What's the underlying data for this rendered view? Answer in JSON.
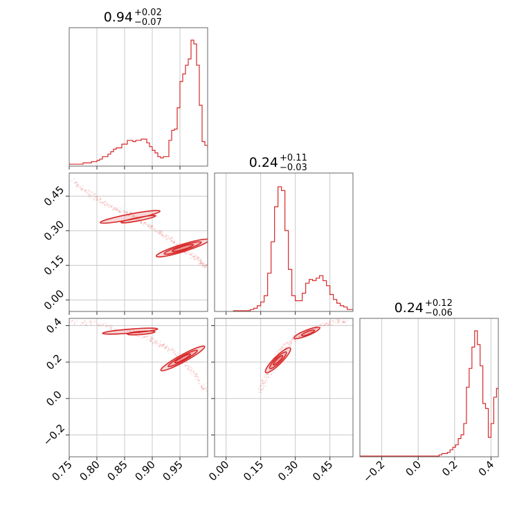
{
  "chart_data": {
    "type": "corner",
    "color": "#d62728",
    "grid": true,
    "panels": [
      {
        "id": "hist-0",
        "type": "histogram",
        "title": {
          "value": "0.94",
          "plus": "+0.02",
          "minus": "−0.07"
        },
        "xlim": [
          0.75,
          1.0
        ],
        "x_edges_start": 0.75,
        "bin_width": 0.005,
        "heights": [
          0.01,
          0.01,
          0.01,
          0.01,
          0.01,
          0.02,
          0.02,
          0.02,
          0.03,
          0.03,
          0.04,
          0.05,
          0.07,
          0.07,
          0.09,
          0.11,
          0.13,
          0.14,
          0.14,
          0.17,
          0.17,
          0.2,
          0.2,
          0.19,
          0.2,
          0.2,
          0.21,
          0.21,
          0.18,
          0.15,
          0.12,
          0.1,
          0.07,
          0.06,
          0.07,
          0.07,
          0.2,
          0.28,
          0.29,
          0.46,
          0.67,
          0.73,
          0.8,
          0.85,
          1.0,
          0.97,
          0.8,
          0.48,
          0.19,
          0.16,
          0.13,
          0.11,
          0.06,
          0.03,
          0.01
        ]
      },
      {
        "id": "hist-1",
        "type": "histogram",
        "title": {
          "value": "0.24",
          "plus": "+0.11",
          "minus": "−0.03"
        },
        "xlim": [
          -0.05,
          0.55
        ],
        "x_edges_start": 0.03,
        "bin_width": 0.015,
        "heights": [
          0.0,
          0.0,
          0.0,
          0.0,
          0.0,
          0.01,
          0.02,
          0.04,
          0.07,
          0.12,
          0.3,
          0.55,
          0.83,
          0.99,
          0.96,
          0.64,
          0.33,
          0.12,
          0.08,
          0.08,
          0.14,
          0.22,
          0.25,
          0.24,
          0.26,
          0.28,
          0.24,
          0.2,
          0.13,
          0.09,
          0.06,
          0.04,
          0.03,
          0.01,
          0.01
        ]
      },
      {
        "id": "hist-2",
        "type": "histogram",
        "title": {
          "value": "0.24",
          "plus": "+0.12",
          "minus": "−0.06"
        },
        "xlim": [
          -0.32,
          0.44
        ],
        "x_edges_start": -0.32,
        "bin_width": 0.015,
        "heights": [
          0.0,
          0.0,
          0.0,
          0.0,
          0.0,
          0.0,
          0.0,
          0.0,
          0.0,
          0.0,
          0.0,
          0.0,
          0.0,
          0.0,
          0.0,
          0.0,
          0.0,
          0.0,
          0.0,
          0.0,
          0.0,
          0.0,
          0.0,
          0.0,
          0.0,
          0.0,
          0.0,
          0.0,
          0.0,
          0.01,
          0.02,
          0.02,
          0.03,
          0.05,
          0.07,
          0.09,
          0.14,
          0.17,
          0.26,
          0.55,
          0.7,
          0.87,
          1.0,
          0.89,
          0.72,
          0.42,
          0.38,
          0.15,
          0.26,
          0.47,
          0.54,
          0.47,
          0.27,
          0.12,
          0.03
        ]
      },
      {
        "id": "scatter-1-0",
        "type": "density2d",
        "x_param": 0,
        "y_param": 1,
        "xlim": [
          0.75,
          1.0
        ],
        "ylim": [
          -0.05,
          0.55
        ],
        "ridge": [
          [
            0.755,
            0.52
          ],
          [
            0.78,
            0.47
          ],
          [
            0.8,
            0.44
          ],
          [
            0.82,
            0.41
          ],
          [
            0.84,
            0.39
          ],
          [
            0.86,
            0.37
          ],
          [
            0.88,
            0.34
          ],
          [
            0.9,
            0.31
          ],
          [
            0.92,
            0.28
          ],
          [
            0.94,
            0.25
          ],
          [
            0.96,
            0.21
          ],
          [
            0.98,
            0.18
          ],
          [
            0.99,
            0.16
          ],
          [
            1.0,
            0.14
          ]
        ],
        "contours": [
          {
            "center": [
              0.86,
              0.36
            ],
            "rx": 0.055,
            "ry": 0.012,
            "rot": -0.19
          },
          {
            "center": [
              0.875,
              0.35
            ],
            "rx": 0.032,
            "ry": 0.007,
            "rot": -0.19
          },
          {
            "center": [
              0.955,
              0.225
            ],
            "rx": 0.05,
            "ry": 0.016,
            "rot": -0.3
          },
          {
            "center": [
              0.955,
              0.225
            ],
            "rx": 0.035,
            "ry": 0.011,
            "rot": -0.3
          },
          {
            "center": [
              0.955,
              0.225
            ],
            "rx": 0.02,
            "ry": 0.006,
            "rot": -0.3
          }
        ]
      },
      {
        "id": "scatter-2-0",
        "type": "density2d",
        "x_param": 0,
        "y_param": 2,
        "xlim": [
          0.75,
          1.0
        ],
        "ylim": [
          -0.32,
          0.44
        ],
        "ridge": [
          [
            0.755,
            0.42
          ],
          [
            0.8,
            0.41
          ],
          [
            0.84,
            0.38
          ],
          [
            0.88,
            0.35
          ],
          [
            0.9,
            0.32
          ],
          [
            0.92,
            0.29
          ],
          [
            0.94,
            0.25
          ],
          [
            0.96,
            0.19
          ],
          [
            0.98,
            0.12
          ],
          [
            0.995,
            0.05
          ]
        ],
        "contours": [
          {
            "center": [
              0.86,
              0.37
            ],
            "rx": 0.05,
            "ry": 0.011,
            "rot": -0.08
          },
          {
            "center": [
              0.88,
              0.36
            ],
            "rx": 0.025,
            "ry": 0.006,
            "rot": -0.08
          },
          {
            "center": [
              0.955,
              0.22
            ],
            "rx": 0.045,
            "ry": 0.02,
            "rot": -0.5
          },
          {
            "center": [
              0.955,
              0.22
            ],
            "rx": 0.03,
            "ry": 0.013,
            "rot": -0.5
          },
          {
            "center": [
              0.955,
              0.22
            ],
            "rx": 0.016,
            "ry": 0.007,
            "rot": -0.5
          }
        ]
      },
      {
        "id": "scatter-2-1",
        "type": "density2d",
        "x_param": 1,
        "y_param": 2,
        "xlim": [
          -0.05,
          0.55
        ],
        "ylim": [
          -0.32,
          0.44
        ],
        "ridge": [
          [
            0.14,
            0.03
          ],
          [
            0.17,
            0.1
          ],
          [
            0.2,
            0.18
          ],
          [
            0.23,
            0.25
          ],
          [
            0.27,
            0.3
          ],
          [
            0.31,
            0.34
          ],
          [
            0.36,
            0.37
          ],
          [
            0.41,
            0.4
          ],
          [
            0.46,
            0.42
          ],
          [
            0.52,
            0.43
          ]
        ],
        "contours": [
          {
            "center": [
              0.225,
              0.21
            ],
            "rx": 0.075,
            "ry": 0.022,
            "rot": -0.78
          },
          {
            "center": [
              0.225,
              0.21
            ],
            "rx": 0.05,
            "ry": 0.015,
            "rot": -0.78
          },
          {
            "center": [
              0.225,
              0.21
            ],
            "rx": 0.028,
            "ry": 0.008,
            "rot": -0.78
          },
          {
            "center": [
              0.35,
              0.36
            ],
            "rx": 0.06,
            "ry": 0.015,
            "rot": -0.38
          },
          {
            "center": [
              0.355,
              0.36
            ],
            "rx": 0.03,
            "ry": 0.008,
            "rot": -0.38
          }
        ]
      }
    ],
    "axes_ticks": {
      "param0": [
        "0.75",
        "0.80",
        "0.85",
        "0.90",
        "0.95"
      ],
      "param1": [
        "0.00",
        "0.15",
        "0.30",
        "0.45"
      ],
      "param2": [
        "−0.2",
        "0.0",
        "0.2",
        "0.4"
      ]
    }
  }
}
